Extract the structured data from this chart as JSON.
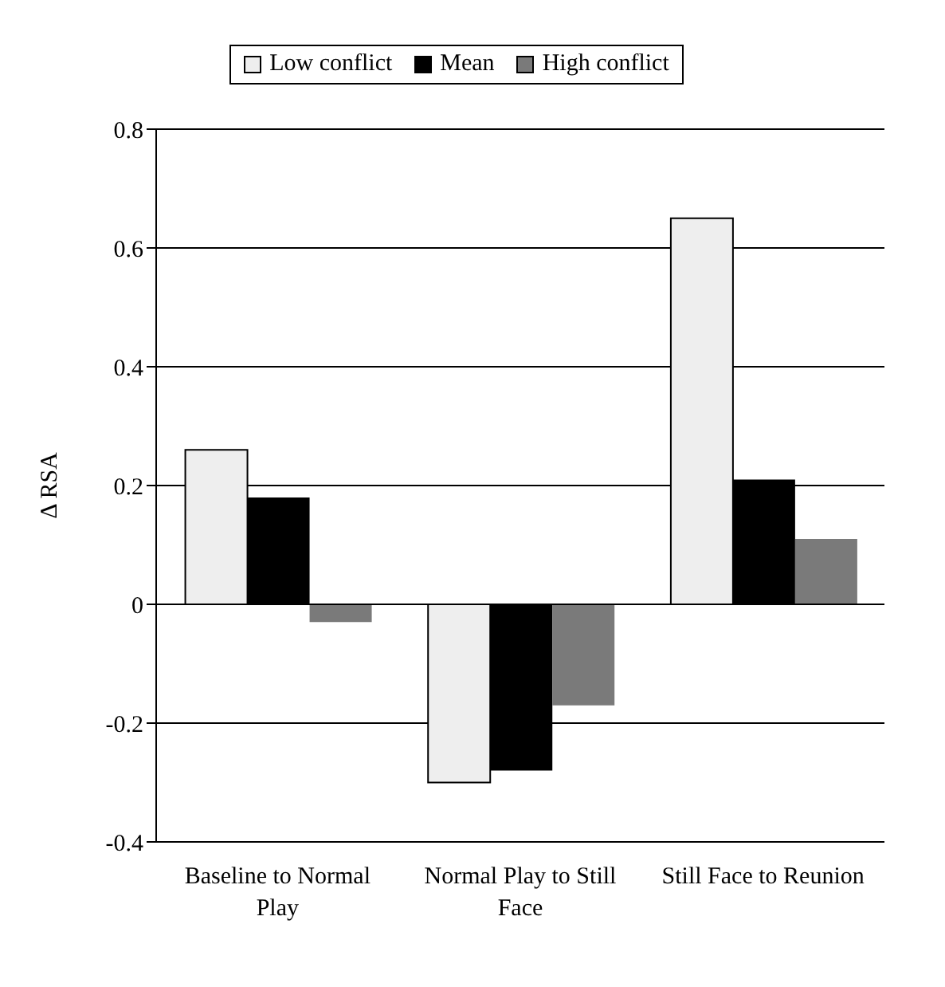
{
  "chart_data": {
    "type": "bar",
    "ylabel": "Δ RSA",
    "categories": [
      "Baseline to Normal Play",
      "Normal Play to Still Face",
      "Still Face to Reunion"
    ],
    "series": [
      {
        "name": "Low conflict",
        "color": "#eeeeee",
        "values": [
          0.26,
          -0.3,
          0.65
        ]
      },
      {
        "name": "Mean",
        "color": "#000000",
        "values": [
          0.18,
          -0.28,
          0.21
        ]
      },
      {
        "name": "High conflict",
        "color": "#7a7a7a",
        "values": [
          -0.03,
          -0.17,
          0.11
        ]
      }
    ],
    "ylim": [
      -0.4,
      0.8
    ],
    "yticks": [
      -0.4,
      -0.2,
      0,
      0.2,
      0.4,
      0.6,
      0.8
    ],
    "grid": "y",
    "legend": "top"
  }
}
